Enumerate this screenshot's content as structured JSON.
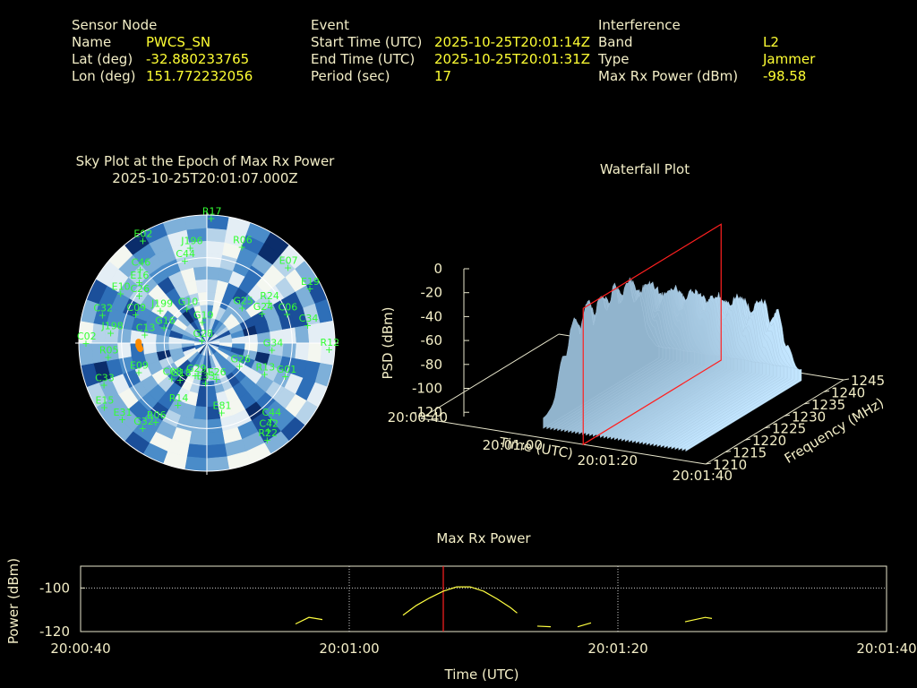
{
  "header": {
    "sensor": {
      "title": "Sensor Node",
      "rows": [
        {
          "label": "Name",
          "value": "PWCS_SN"
        },
        {
          "label": "Lat (deg)",
          "value": "-32.880233765"
        },
        {
          "label": "Lon (deg)",
          "value": "151.772232056"
        }
      ]
    },
    "event": {
      "title": "Event",
      "rows": [
        {
          "label": "Start Time (UTC)",
          "value": "2025-10-25T20:01:14Z"
        },
        {
          "label": "End Time (UTC)",
          "value": "2025-10-25T20:01:31Z"
        },
        {
          "label": "Period (sec)",
          "value": "17"
        }
      ]
    },
    "interference": {
      "title": "Interference",
      "rows": [
        {
          "label": "Band",
          "value": "L2"
        },
        {
          "label": "Type",
          "value": "Jammer"
        },
        {
          "label": "Max Rx Power (dBm)",
          "value": "-98.58"
        }
      ]
    }
  },
  "colors": {
    "text": "#f3eec7",
    "value": "#ffff33",
    "satellite": "#33ff33",
    "track": "#ff8c00",
    "cursor": "#ff2020",
    "power_line": "#ffff40"
  },
  "skyplot": {
    "title": "Sky Plot at the Epoch of Max Rx Power",
    "subtitle": "2025-10-25T20:01:07.000Z",
    "satellites": [
      {
        "id": "R17",
        "az": 2,
        "el": 2
      },
      {
        "id": "E02",
        "az": 328,
        "el": 5
      },
      {
        "id": "J196",
        "az": 350,
        "el": 22
      },
      {
        "id": "C44",
        "az": 345,
        "el": 30
      },
      {
        "id": "R06",
        "az": 20,
        "el": 18
      },
      {
        "id": "E07",
        "az": 47,
        "el": 12
      },
      {
        "id": "E19",
        "az": 62,
        "el": 8
      },
      {
        "id": "C46",
        "az": 318,
        "el": 20
      },
      {
        "id": "E16",
        "az": 312,
        "el": 26
      },
      {
        "id": "E10",
        "az": 300,
        "el": 20
      },
      {
        "id": "C26",
        "az": 305,
        "el": 32
      },
      {
        "id": "C09",
        "az": 292,
        "el": 36
      },
      {
        "id": "J199",
        "az": 305,
        "el": 50
      },
      {
        "id": "C32",
        "az": 285,
        "el": 14
      },
      {
        "id": "J198",
        "az": 276,
        "el": 22
      },
      {
        "id": "C02",
        "az": 270,
        "el": 5
      },
      {
        "id": "C13",
        "az": 278,
        "el": 46
      },
      {
        "id": "R05",
        "az": 262,
        "el": 20
      },
      {
        "id": "E09",
        "az": 247,
        "el": 38
      },
      {
        "id": "G16",
        "az": 290,
        "el": 58
      },
      {
        "id": "G10",
        "az": 330,
        "el": 62
      },
      {
        "id": "G25",
        "az": 45,
        "el": 55
      },
      {
        "id": "G24",
        "az": 62,
        "el": 46
      },
      {
        "id": "R24",
        "az": 57,
        "el": 38
      },
      {
        "id": "C06",
        "az": 70,
        "el": 30
      },
      {
        "id": "G19",
        "az": 348,
        "el": 75
      },
      {
        "id": "G28",
        "az": 300,
        "el": 86
      },
      {
        "id": "G34",
        "az": 96,
        "el": 44
      },
      {
        "id": "C34",
        "az": 80,
        "el": 18
      },
      {
        "id": "R12",
        "az": 93,
        "el": 4
      },
      {
        "id": "C33",
        "az": 248,
        "el": 12
      },
      {
        "id": "E15",
        "az": 238,
        "el": 5
      },
      {
        "id": "E31",
        "az": 228,
        "el": 10
      },
      {
        "id": "G32",
        "az": 217,
        "el": 15
      },
      {
        "id": "R14",
        "az": 205,
        "el": 42
      },
      {
        "id": "R06",
        "az": 213,
        "el": 24
      },
      {
        "id": "G18",
        "az": 216,
        "el": 58
      },
      {
        "id": "C08",
        "az": 225,
        "el": 55
      },
      {
        "id": "G29",
        "az": 200,
        "el": 66
      },
      {
        "id": "E26",
        "az": 165,
        "el": 64
      },
      {
        "id": "E33",
        "az": 182,
        "el": 62
      },
      {
        "id": "G26",
        "az": 125,
        "el": 62
      },
      {
        "id": "R13",
        "az": 118,
        "el": 44
      },
      {
        "id": "E81",
        "az": 168,
        "el": 40
      },
      {
        "id": "G01",
        "az": 113,
        "el": 30
      },
      {
        "id": "C44",
        "az": 140,
        "el": 20
      },
      {
        "id": "C42",
        "az": 145,
        "el": 15
      },
      {
        "id": "R22",
        "az": 148,
        "el": 10
      }
    ],
    "jammer_track": [
      {
        "az": 271,
        "el": 42
      },
      {
        "az": 268,
        "el": 42
      },
      {
        "az": 265,
        "el": 43
      }
    ]
  },
  "waterfall": {
    "title": "Waterfall Plot",
    "zlabel": "PSD (dBm)",
    "xlabel": "Time (UTC)",
    "ylabel": "Frequency (MHz)",
    "z_ticks": [
      "0",
      "-20",
      "-40",
      "-60",
      "-80",
      "-100",
      "-120"
    ],
    "time_ticks": [
      "20:00:40",
      "20:01:00",
      "20:01:20",
      "20:01:40"
    ],
    "freq_ticks": [
      "1210",
      "1215",
      "1220",
      "1225",
      "1230",
      "1235",
      "1240",
      "1245"
    ]
  },
  "chart_data": {
    "type": "line",
    "title": "Max Rx Power",
    "xlabel": "Time (UTC)",
    "ylabel": "Power (dBm)",
    "x_ticks": [
      "20:00:40",
      "20:01:00",
      "20:01:20",
      "20:01:40"
    ],
    "y_ticks": [
      -100,
      -120
    ],
    "xlim_seconds_from_start": [
      0,
      60
    ],
    "ylim": [
      -120,
      -90
    ],
    "cursor_seconds": 27,
    "series": [
      {
        "segments": [
          [
            [
              16.0,
              -116.5
            ],
            [
              17.0,
              -113.5
            ],
            [
              18.0,
              -114.5
            ]
          ],
          [
            [
              24.0,
              -112.5
            ],
            [
              25.0,
              -108.0
            ],
            [
              26.0,
              -104.5
            ],
            [
              27.0,
              -101.5
            ],
            [
              28.0,
              -99.5
            ],
            [
              29.0,
              -99.5
            ],
            [
              30.0,
              -101.5
            ],
            [
              31.0,
              -105.0
            ],
            [
              32.0,
              -109.0
            ],
            [
              32.5,
              -111.5
            ]
          ],
          [
            [
              34.0,
              -117.5
            ],
            [
              35.0,
              -117.8
            ]
          ],
          [
            [
              37.0,
              -117.8
            ],
            [
              38.0,
              -116.0
            ]
          ],
          [
            [
              45.0,
              -115.5
            ],
            [
              46.5,
              -113.5
            ],
            [
              47.0,
              -114.0
            ]
          ]
        ]
      }
    ]
  }
}
